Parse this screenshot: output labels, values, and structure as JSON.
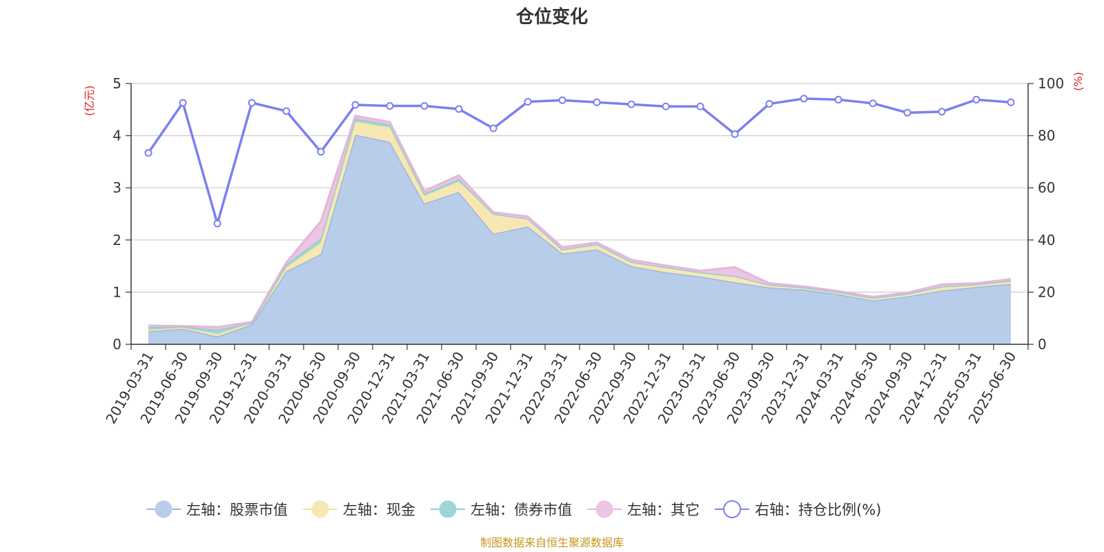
{
  "chart_data": {
    "type": "area",
    "title": "仓位变化",
    "left_axis_unit": "(亿元)",
    "right_axis_unit": "(%)",
    "categories": [
      "2019-03-31",
      "2019-06-30",
      "2019-09-30",
      "2019-12-31",
      "2020-03-31",
      "2020-06-30",
      "2020-09-30",
      "2020-12-31",
      "2021-03-31",
      "2021-06-30",
      "2021-09-30",
      "2021-12-31",
      "2022-03-31",
      "2022-06-30",
      "2022-09-30",
      "2022-12-31",
      "2023-03-31",
      "2023-06-30",
      "2023-09-30",
      "2023-12-31",
      "2024-03-31",
      "2024-06-30",
      "2024-09-30",
      "2024-12-31",
      "2025-03-31",
      "2025-06-30"
    ],
    "ylim_left": [
      0,
      5
    ],
    "yticks_left": [
      "0",
      "1",
      "2",
      "3",
      "4",
      "5"
    ],
    "ylim_right": [
      0,
      100
    ],
    "yticks_right": [
      "0",
      "20",
      "40",
      "60",
      "80",
      "100"
    ],
    "grid": true,
    "legend_position": "bottom",
    "series": [
      {
        "name": "左轴：股票市值",
        "axis": "left",
        "kind": "stacked-area",
        "color": "#9db6e0",
        "fill": "#b8cdea",
        "values": [
          0.25,
          0.3,
          0.15,
          0.38,
          1.4,
          1.73,
          4.02,
          3.88,
          2.7,
          2.92,
          2.12,
          2.26,
          1.74,
          1.82,
          1.5,
          1.38,
          1.3,
          1.19,
          1.09,
          1.05,
          0.96,
          0.84,
          0.92,
          1.03,
          1.1,
          1.16
        ]
      },
      {
        "name": "左轴：现金",
        "axis": "left",
        "kind": "stacked-area",
        "color": "#f5e39b",
        "fill": "#f7e8b3",
        "values": [
          0.03,
          0.02,
          0.05,
          0.03,
          0.08,
          0.22,
          0.25,
          0.28,
          0.15,
          0.2,
          0.38,
          0.15,
          0.08,
          0.1,
          0.08,
          0.1,
          0.08,
          0.12,
          0.05,
          0.04,
          0.04,
          0.05,
          0.05,
          0.08,
          0.05,
          0.06
        ]
      },
      {
        "name": "左轴：债券市值",
        "axis": "left",
        "kind": "stacked-area",
        "color": "#8ecfd2",
        "fill": "#9ed6d8",
        "values": [
          0.05,
          0.02,
          0.08,
          0.0,
          0.05,
          0.08,
          0.06,
          0.05,
          0.04,
          0.05,
          0.0,
          0.0,
          0.0,
          0.0,
          0.0,
          0.0,
          0.0,
          0.0,
          0.0,
          0.0,
          0.0,
          0.0,
          0.0,
          0.0,
          0.0,
          0.0
        ]
      },
      {
        "name": "左轴：其它",
        "axis": "left",
        "kind": "stacked-area",
        "color": "#e6b6da",
        "fill": "#ebc5e3",
        "values": [
          0.03,
          0.01,
          0.05,
          0.02,
          0.04,
          0.33,
          0.05,
          0.05,
          0.05,
          0.07,
          0.03,
          0.04,
          0.04,
          0.03,
          0.04,
          0.03,
          0.03,
          0.17,
          0.03,
          0.02,
          0.02,
          0.02,
          0.02,
          0.04,
          0.02,
          0.03
        ]
      },
      {
        "name": "右轴：持仓比例(%)",
        "axis": "right",
        "kind": "line",
        "color": "#7b7ff0",
        "values": [
          73.4,
          92.6,
          46.3,
          92.6,
          89.4,
          73.8,
          91.8,
          91.4,
          91.4,
          90.2,
          82.8,
          93.0,
          93.6,
          92.8,
          92.0,
          91.2,
          91.2,
          80.6,
          92.2,
          94.2,
          93.8,
          92.4,
          88.8,
          89.2,
          93.8,
          92.8
        ]
      }
    ]
  },
  "source_text": "制图数据来自恒生聚源数据库"
}
